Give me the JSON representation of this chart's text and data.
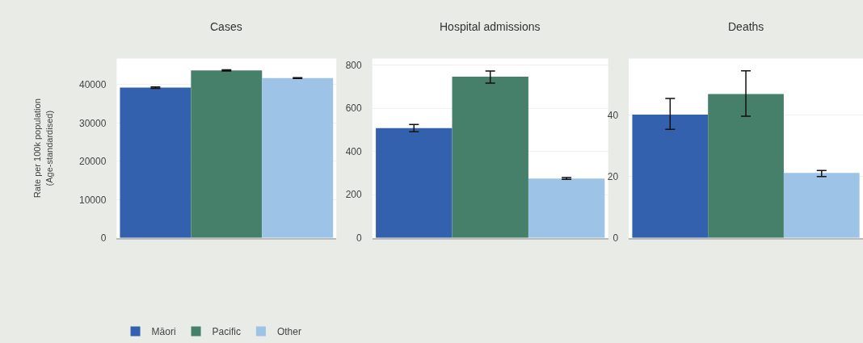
{
  "chart_data": [
    {
      "type": "bar",
      "title": "Cases",
      "ylabel": "Rate per 100k population\n(Age-standardised)",
      "categories": [
        null
      ],
      "ylim": [
        0,
        46800
      ],
      "yticks": [
        0,
        10000,
        20000,
        30000,
        40000
      ],
      "grid": "y",
      "legend": "bottom",
      "series": [
        {
          "name": "Māori",
          "color": "#3461ad",
          "values": [
            39200
          ],
          "errors": [
            [
              39000,
              39400
            ]
          ]
        },
        {
          "name": "Pacific",
          "color": "#46806a",
          "values": [
            43700
          ],
          "errors": [
            [
              43550,
              43850
            ]
          ]
        },
        {
          "name": "Other",
          "color": "#9dc3e6",
          "values": [
            41700
          ],
          "errors": [
            [
              41600,
              41800
            ]
          ]
        }
      ]
    },
    {
      "type": "bar",
      "title": "Hospital admissions",
      "categories": [
        null
      ],
      "ylim": [
        0,
        830
      ],
      "yticks": [
        0,
        200,
        400,
        600,
        800
      ],
      "grid": "y",
      "series": [
        {
          "color": "#3461ad",
          "values": [
            508
          ],
          "errors": [
            [
              491,
              525
            ]
          ]
        },
        {
          "color": "#46806a",
          "values": [
            746
          ],
          "errors": [
            [
              716,
              772
            ]
          ]
        },
        {
          "color": "#9dc3e6",
          "values": [
            275
          ],
          "errors": [
            [
              271,
              279
            ]
          ]
        }
      ]
    },
    {
      "type": "bar",
      "title": "Deaths",
      "categories": [
        null
      ],
      "ylim": [
        0,
        58.5
      ],
      "yticks": [
        0,
        20,
        40
      ],
      "grid": "y",
      "series": [
        {
          "color": "#3461ad",
          "values": [
            40.2
          ],
          "errors": [
            [
              35.4,
              45.5
            ]
          ]
        },
        {
          "color": "#46806a",
          "values": [
            46.9
          ],
          "errors": [
            [
              39.7,
              54.5
            ]
          ]
        },
        {
          "color": "#9dc3e6",
          "values": [
            21.2
          ],
          "errors": [
            [
              20.0,
              22.0
            ]
          ]
        }
      ]
    }
  ]
}
